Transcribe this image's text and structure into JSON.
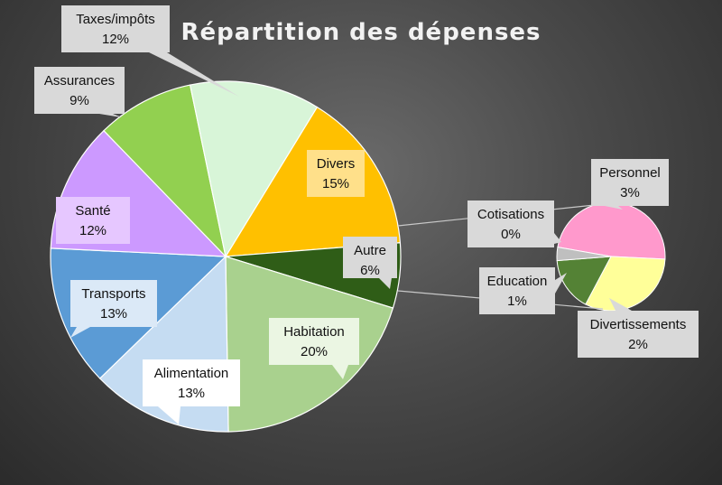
{
  "chart_data": {
    "type": "pie",
    "subtype": "pie-of-pie",
    "title": "Répartition des dépenses",
    "main": [
      {
        "name": "Divers",
        "pct": "15%",
        "value": 15,
        "color": "#ffc000"
      },
      {
        "name": "Autre",
        "pct": "6%",
        "value": 6,
        "color": "#2f5d17"
      },
      {
        "name": "Habitation",
        "pct": "20%",
        "value": 20,
        "color": "#a9d18e"
      },
      {
        "name": "Alimentation",
        "pct": "13%",
        "value": 13,
        "color": "#c5dcf2"
      },
      {
        "name": "Transports",
        "pct": "13%",
        "value": 13,
        "color": "#5b9bd5"
      },
      {
        "name": "Santé",
        "pct": "12%",
        "value": 12,
        "color": "#cc99ff"
      },
      {
        "name": "Assurances",
        "pct": "9%",
        "value": 9,
        "color": "#92d050"
      },
      {
        "name": "Taxes/impôts",
        "pct": "12%",
        "value": 12,
        "color": "#d8f5d8"
      }
    ],
    "secondary": [
      {
        "name": "Personnel",
        "pct": "3%",
        "value": 3,
        "color": "#ff99cc"
      },
      {
        "name": "Divertissements",
        "pct": "2%",
        "value": 2,
        "color": "#ffff99"
      },
      {
        "name": "Education",
        "pct": "1%",
        "value": 1,
        "color": "#548235"
      },
      {
        "name": "Cotisations",
        "pct": "0%",
        "value": 0.25,
        "color": "#bfbfbf"
      }
    ],
    "legend": "none",
    "data_labels": "callouts"
  }
}
